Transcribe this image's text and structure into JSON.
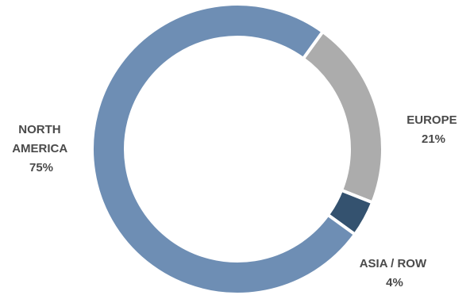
{
  "chart_data": {
    "type": "pie",
    "variant": "donut",
    "title": "",
    "slices": [
      {
        "label": "NORTH AMERICA",
        "value": 75,
        "value_label": "75%",
        "color": "#6e8eb4"
      },
      {
        "label": "EUROPE",
        "value": 21,
        "value_label": "21%",
        "color": "#acacac"
      },
      {
        "label": "ASIA / ROW",
        "value": 4,
        "value_label": "4%",
        "color": "#34526f"
      }
    ]
  }
}
